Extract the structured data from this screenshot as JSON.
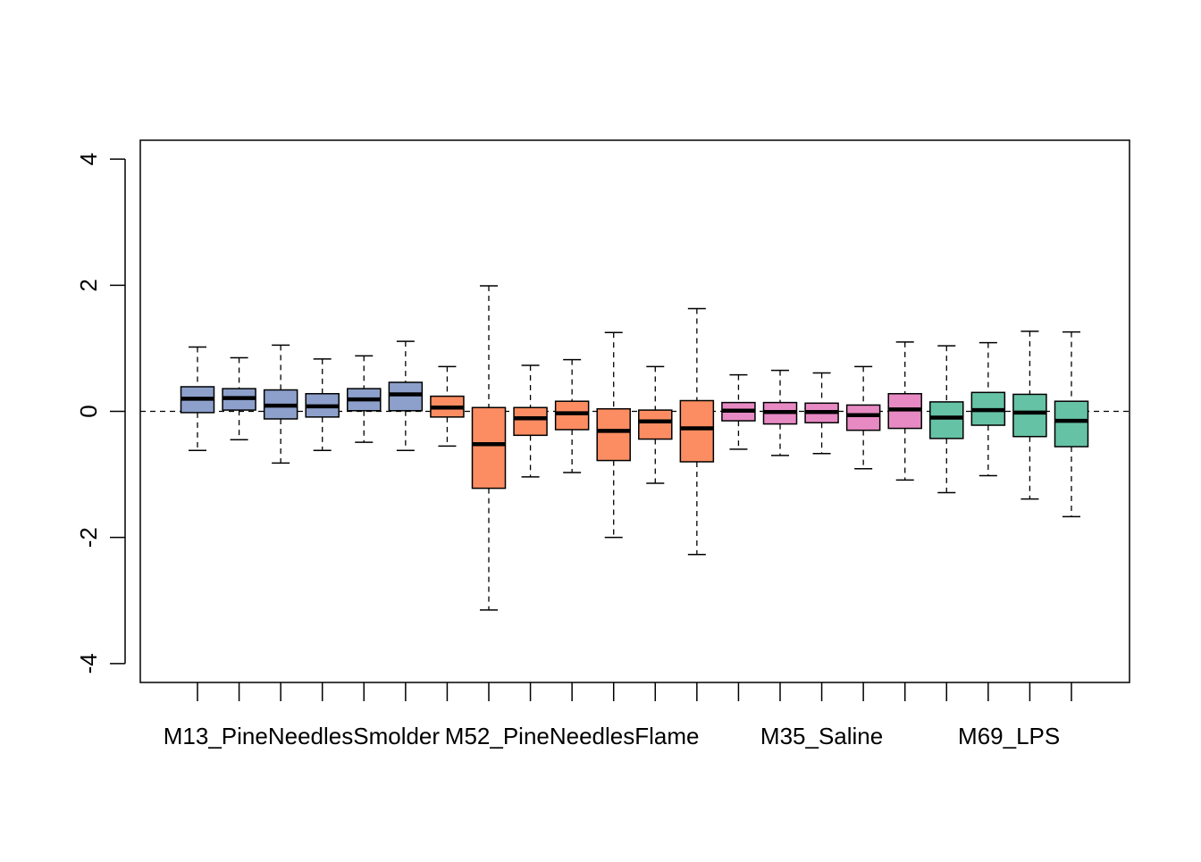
{
  "chart_data": {
    "type": "boxplot",
    "title": "",
    "xlabel": "",
    "ylabel": "",
    "ylim": [
      -4.3,
      4.3
    ],
    "yticks": [
      -4,
      -2,
      0,
      2,
      4
    ],
    "ytick_labels": [
      "-4",
      "-2",
      "0",
      "2",
      "4"
    ],
    "reference_line": 0,
    "group_labels": [
      {
        "label": "M13_PineNeedlesSmolder",
        "center_box": 3.5
      },
      {
        "label": "M52_PineNeedlesFlame",
        "center_box": 10
      },
      {
        "label": "M35_Saline",
        "center_box": 16
      },
      {
        "label": "M69_LPS",
        "center_box": 20.5
      }
    ],
    "colors": {
      "M13_PineNeedlesSmolder": "#8DA0CB",
      "M52_PineNeedlesFlame": "#FC8D62",
      "M35_Saline": "#E78AC3",
      "M69_LPS": "#66C2A5"
    },
    "boxes": [
      {
        "group": "M13_PineNeedlesSmolder",
        "whisker_low": -0.62,
        "q1": -0.02,
        "median": 0.2,
        "q3": 0.39,
        "whisker_high": 1.02
      },
      {
        "group": "M13_PineNeedlesSmolder",
        "whisker_low": -0.45,
        "q1": 0.02,
        "median": 0.21,
        "q3": 0.36,
        "whisker_high": 0.85
      },
      {
        "group": "M13_PineNeedlesSmolder",
        "whisker_low": -0.82,
        "q1": -0.12,
        "median": 0.09,
        "q3": 0.34,
        "whisker_high": 1.05
      },
      {
        "group": "M13_PineNeedlesSmolder",
        "whisker_low": -0.62,
        "q1": -0.09,
        "median": 0.08,
        "q3": 0.28,
        "whisker_high": 0.83
      },
      {
        "group": "M13_PineNeedlesSmolder",
        "whisker_low": -0.49,
        "q1": 0.01,
        "median": 0.19,
        "q3": 0.36,
        "whisker_high": 0.88
      },
      {
        "group": "M13_PineNeedlesSmolder",
        "whisker_low": -0.62,
        "q1": 0.01,
        "median": 0.27,
        "q3": 0.46,
        "whisker_high": 1.11
      },
      {
        "group": "M52_PineNeedlesFlame",
        "whisker_low": -0.55,
        "q1": -0.09,
        "median": 0.06,
        "q3": 0.24,
        "whisker_high": 0.71
      },
      {
        "group": "M52_PineNeedlesFlame",
        "whisker_low": -3.15,
        "q1": -1.22,
        "median": -0.52,
        "q3": 0.06,
        "whisker_high": 1.99
      },
      {
        "group": "M52_PineNeedlesFlame",
        "whisker_low": -1.04,
        "q1": -0.38,
        "median": -0.11,
        "q3": 0.06,
        "whisker_high": 0.73
      },
      {
        "group": "M52_PineNeedlesFlame",
        "whisker_low": -0.97,
        "q1": -0.29,
        "median": -0.03,
        "q3": 0.16,
        "whisker_high": 0.82
      },
      {
        "group": "M52_PineNeedlesFlame",
        "whisker_low": -2.0,
        "q1": -0.78,
        "median": -0.31,
        "q3": 0.04,
        "whisker_high": 1.25
      },
      {
        "group": "M52_PineNeedlesFlame",
        "whisker_low": -1.14,
        "q1": -0.44,
        "median": -0.16,
        "q3": 0.02,
        "whisker_high": 0.71
      },
      {
        "group": "M52_PineNeedlesFlame",
        "whisker_low": -2.27,
        "q1": -0.8,
        "median": -0.27,
        "q3": 0.17,
        "whisker_high": 1.63
      },
      {
        "group": "M35_Saline",
        "whisker_low": -0.6,
        "q1": -0.15,
        "median": 0.01,
        "q3": 0.14,
        "whisker_high": 0.58
      },
      {
        "group": "M35_Saline",
        "whisker_low": -0.7,
        "q1": -0.2,
        "median": -0.01,
        "q3": 0.14,
        "whisker_high": 0.65
      },
      {
        "group": "M35_Saline",
        "whisker_low": -0.67,
        "q1": -0.18,
        "median": -0.01,
        "q3": 0.13,
        "whisker_high": 0.61
      },
      {
        "group": "M35_Saline",
        "whisker_low": -0.91,
        "q1": -0.3,
        "median": -0.06,
        "q3": 0.1,
        "whisker_high": 0.71
      },
      {
        "group": "M35_Saline",
        "whisker_low": -1.09,
        "q1": -0.27,
        "median": 0.03,
        "q3": 0.28,
        "whisker_high": 1.1
      },
      {
        "group": "M69_LPS",
        "whisker_low": -1.29,
        "q1": -0.43,
        "median": -0.1,
        "q3": 0.15,
        "whisker_high": 1.04
      },
      {
        "group": "M69_LPS",
        "whisker_low": -1.02,
        "q1": -0.22,
        "median": 0.02,
        "q3": 0.3,
        "whisker_high": 1.09
      },
      {
        "group": "M69_LPS",
        "whisker_low": -1.39,
        "q1": -0.4,
        "median": -0.02,
        "q3": 0.27,
        "whisker_high": 1.27
      },
      {
        "group": "M69_LPS",
        "whisker_low": -1.67,
        "q1": -0.56,
        "median": -0.15,
        "q3": 0.16,
        "whisker_high": 1.26
      }
    ]
  }
}
